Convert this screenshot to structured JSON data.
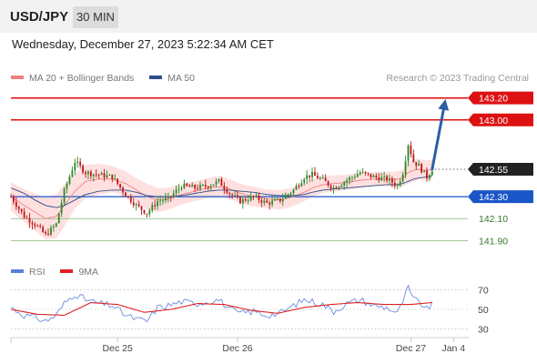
{
  "header": {
    "pair": "USD/JPY",
    "timeframe": "30 MIN",
    "datetime": "Wednesday, December 27, 2023 5:22:34 AM CET",
    "credit": "Research © 2023 Trading Central"
  },
  "legend_main": [
    {
      "label": "MA 20 + Bollinger Bands",
      "color": "#f08080"
    },
    {
      "label": "MA 50",
      "color": "#2c4f8a"
    }
  ],
  "legend_rsi": [
    {
      "label": "RSI",
      "color": "#5b7fd9"
    },
    {
      "label": "9MA",
      "color": "#e02020"
    }
  ],
  "colors": {
    "up": "#2a8a2a",
    "down": "#c01818",
    "band": "#ffd6d6",
    "ma20": "#f08080",
    "ma50": "#2c4f8a",
    "resistance": "#dd1111",
    "pivot": "#1a56c8",
    "support": "#7fb86e",
    "current": "#222222",
    "arrow": "#2b5fa6"
  },
  "chart_data": [
    {
      "type": "candlestick",
      "title": "USD/JPY 30 MIN",
      "ylim": [
        141.82,
        143.28
      ],
      "xlim": [
        0,
        170
      ],
      "x_ticks": [
        {
          "x": 40,
          "label": "Dec 25"
        },
        {
          "x": 85,
          "label": "Dec 26"
        },
        {
          "x": 150,
          "label": "Dec 27"
        },
        {
          "x": 166,
          "label": "Jan 4"
        }
      ],
      "levels": [
        {
          "value": 143.2,
          "label": "143.20",
          "kind": "resistance"
        },
        {
          "value": 143.0,
          "label": "143.00",
          "kind": "resistance"
        },
        {
          "value": 142.55,
          "label": "142.55",
          "kind": "current"
        },
        {
          "value": 142.3,
          "label": "142.30",
          "kind": "pivot"
        },
        {
          "value": 142.1,
          "label": "142.10",
          "kind": "support"
        },
        {
          "value": 141.9,
          "label": "141.90",
          "kind": "support"
        }
      ],
      "arrow": {
        "from": [
          158,
          142.55
        ],
        "to": [
          163,
          143.19
        ]
      },
      "anchors": {
        "x": [
          0,
          5,
          9,
          13,
          17,
          20,
          24,
          28,
          33,
          38,
          43,
          47,
          51,
          55,
          59,
          64,
          69,
          74,
          78,
          82,
          86,
          91,
          96,
          101,
          106,
          110,
          113,
          117,
          121,
          126,
          131,
          136,
          141,
          145,
          147,
          149,
          151,
          153,
          156,
          158
        ],
        "close": [
          142.3,
          142.12,
          142.05,
          141.95,
          142.05,
          142.35,
          142.62,
          142.52,
          142.5,
          142.48,
          142.32,
          142.22,
          142.15,
          142.26,
          142.28,
          142.4,
          142.38,
          142.4,
          142.44,
          142.33,
          142.26,
          142.3,
          142.24,
          142.27,
          142.36,
          142.48,
          142.5,
          142.45,
          142.38,
          142.45,
          142.52,
          142.48,
          142.46,
          142.4,
          142.52,
          142.78,
          142.62,
          142.58,
          142.48,
          142.55
        ],
        "ma20": [
          142.3,
          142.22,
          142.16,
          142.1,
          142.12,
          142.22,
          142.35,
          142.44,
          142.46,
          142.46,
          142.42,
          142.36,
          142.3,
          142.27,
          142.28,
          142.32,
          142.35,
          142.38,
          142.39,
          142.37,
          142.33,
          142.3,
          142.28,
          142.27,
          142.3,
          142.34,
          142.38,
          142.41,
          142.42,
          142.43,
          142.45,
          142.46,
          142.46,
          142.46,
          142.47,
          142.52,
          142.54,
          142.55,
          142.54,
          142.55
        ],
        "width": [
          0.26,
          0.3,
          0.34,
          0.38,
          0.4,
          0.38,
          0.32,
          0.3,
          0.28,
          0.24,
          0.22,
          0.22,
          0.24,
          0.22,
          0.2,
          0.18,
          0.18,
          0.18,
          0.2,
          0.18,
          0.18,
          0.18,
          0.17,
          0.18,
          0.17,
          0.16,
          0.16,
          0.15,
          0.15,
          0.14,
          0.14,
          0.13,
          0.13,
          0.14,
          0.16,
          0.2,
          0.2,
          0.19,
          0.18,
          0.18
        ],
        "ma50": [
          142.38,
          142.33,
          142.27,
          142.22,
          142.2,
          142.22,
          142.27,
          142.32,
          142.35,
          142.36,
          142.36,
          142.34,
          142.31,
          142.3,
          142.3,
          142.31,
          142.33,
          142.35,
          142.36,
          142.36,
          142.35,
          142.34,
          142.32,
          142.31,
          142.31,
          142.32,
          142.34,
          142.36,
          142.37,
          142.38,
          142.39,
          142.4,
          142.41,
          142.41,
          142.42,
          142.44,
          142.46,
          142.47,
          142.48,
          142.49
        ]
      }
    },
    {
      "type": "line",
      "title": "RSI",
      "ylim": [
        24,
        76
      ],
      "y_ticks": [
        70,
        50,
        30
      ],
      "series": [
        {
          "name": "RSI",
          "color": "#5b7fd9",
          "x": [
            0,
            5,
            9,
            13,
            17,
            20,
            24,
            28,
            33,
            38,
            43,
            47,
            51,
            55,
            59,
            64,
            69,
            74,
            78,
            82,
            86,
            91,
            96,
            101,
            106,
            110,
            113,
            117,
            121,
            126,
            131,
            136,
            141,
            145,
            147,
            149,
            151,
            153,
            156,
            158
          ],
          "y": [
            52,
            44,
            42,
            38,
            44,
            56,
            66,
            60,
            56,
            54,
            44,
            40,
            38,
            52,
            54,
            58,
            56,
            58,
            60,
            50,
            46,
            48,
            44,
            46,
            54,
            60,
            58,
            55,
            48,
            56,
            60,
            54,
            52,
            46,
            58,
            72,
            60,
            58,
            50,
            56
          ]
        },
        {
          "name": "9MA",
          "color": "#e02020",
          "x": [
            0,
            10,
            20,
            30,
            40,
            50,
            60,
            70,
            80,
            90,
            100,
            110,
            120,
            130,
            140,
            150,
            158
          ],
          "y": [
            50,
            45,
            44,
            57,
            55,
            47,
            50,
            56,
            55,
            49,
            46,
            52,
            55,
            57,
            55,
            55,
            57
          ]
        }
      ]
    }
  ]
}
